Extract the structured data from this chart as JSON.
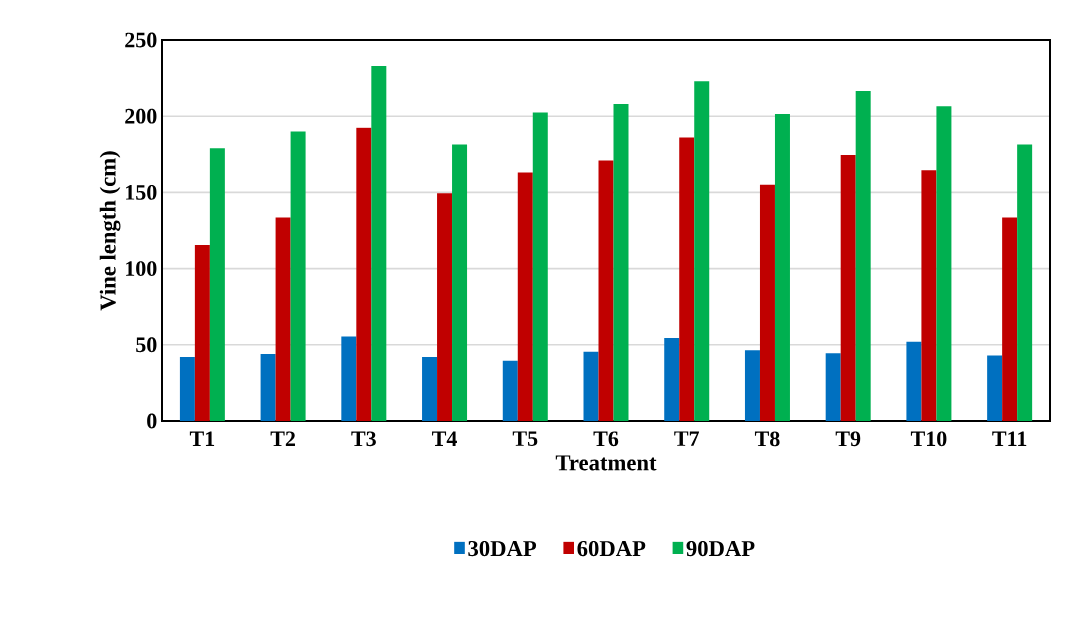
{
  "chart_data": {
    "type": "bar",
    "xlabel": "Treatment",
    "ylabel": "Vine length (cm)",
    "categories": [
      "T1",
      "T2",
      "T3",
      "T4",
      "T5",
      "T6",
      "T7",
      "T8",
      "T9",
      "T10",
      "T11"
    ],
    "series": [
      {
        "name": "30DAP",
        "color": "#0070c0",
        "values": [
          42,
          44,
          55.5,
          42,
          39.5,
          45.5,
          54.5,
          46.5,
          44.5,
          52,
          43
        ]
      },
      {
        "name": "60DAP",
        "color": "#c00000",
        "values": [
          115.5,
          133.5,
          192.5,
          149.5,
          163,
          171,
          186,
          155,
          174.5,
          164.5,
          133.5
        ]
      },
      {
        "name": "90DAP",
        "color": "#00b050",
        "values": [
          179,
          190,
          233,
          181.5,
          202.5,
          208,
          223,
          201.5,
          216.5,
          206.5,
          181.5
        ]
      }
    ],
    "ylim": [
      0,
      250
    ],
    "yticks": [
      0,
      50,
      100,
      150,
      200,
      250
    ],
    "grid": "y",
    "legend": "bottom"
  }
}
